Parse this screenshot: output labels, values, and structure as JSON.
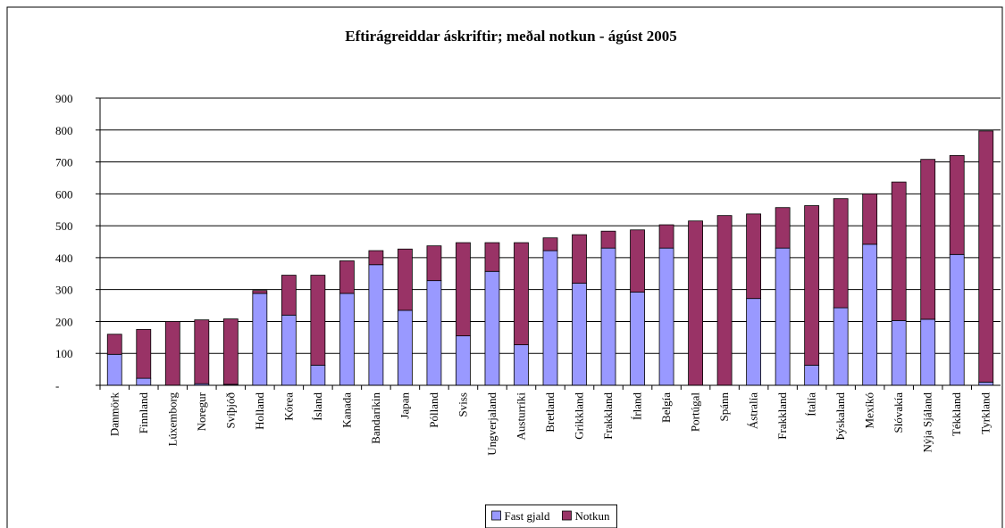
{
  "chart_data": {
    "type": "stacked_bar",
    "title": "Eftirágreiddar áskriftir; meðal notkun - ágúst 2005",
    "categories": [
      "Danmörk",
      "Finnland",
      "Lúxemborg",
      "Noregur",
      "Svíþjóð",
      "Holland",
      "Kórea",
      "Ísland",
      "Kanada",
      "Bandaríkin",
      "Japan",
      "Pólland",
      "Sviss",
      "Ungverjaland",
      "Austurríki",
      "Bretland",
      "Grikkland",
      "Frakkland",
      "Írland",
      "Belgía",
      "Portúgal",
      "Spánn",
      "Ástralía",
      "Frakkland",
      "Ítalía",
      "Þýskaland",
      "Mexíkó",
      "Slóvakía",
      "Nýja Sjáland",
      "Tékkland",
      "Tyrkland"
    ],
    "series": [
      {
        "name": "Fast gjald",
        "color": "#9999ff",
        "values": [
          97,
          22,
          0,
          5,
          3,
          288,
          220,
          63,
          288,
          378,
          235,
          328,
          155,
          357,
          127,
          422,
          320,
          430,
          292,
          430,
          0,
          0,
          272,
          430,
          63,
          243,
          442,
          203,
          207,
          410,
          10
        ]
      },
      {
        "name": "Notkun",
        "color": "#993366",
        "values": [
          63,
          153,
          200,
          200,
          205,
          9,
          125,
          282,
          102,
          44,
          192,
          109,
          292,
          90,
          320,
          40,
          152,
          53,
          195,
          73,
          515,
          532,
          265,
          127,
          500,
          342,
          158,
          434,
          501,
          310,
          787
        ]
      }
    ],
    "ylim": [
      0,
      900
    ],
    "yticks": [
      {
        "value": 0,
        "label": "-"
      },
      100,
      200,
      300,
      400,
      500,
      600,
      700,
      800,
      900
    ],
    "grid": true,
    "legend": "bottom"
  }
}
